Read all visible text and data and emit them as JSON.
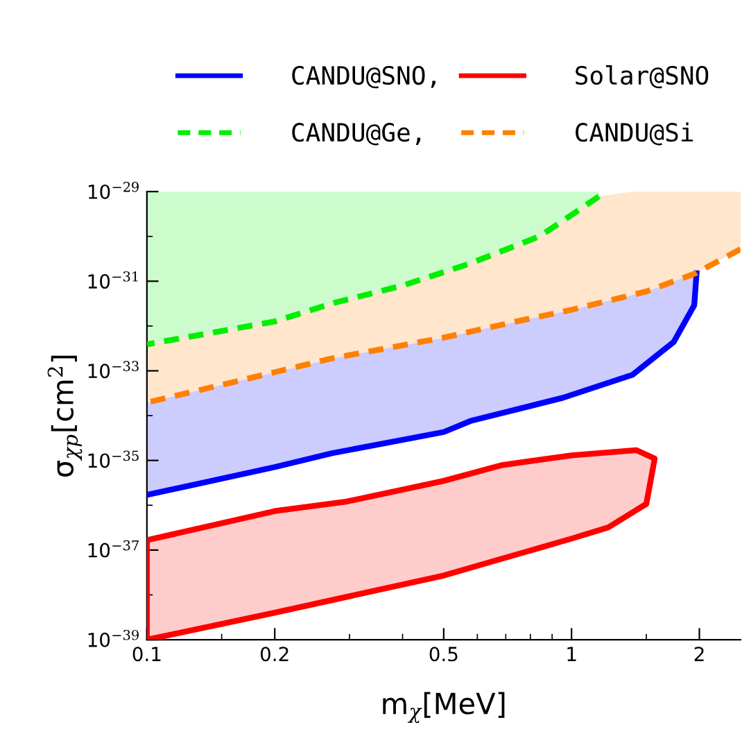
{
  "chart_data": {
    "type": "line",
    "xlabel": "m$_{χ}$[MeV]",
    "ylabel": "σ$_{χp}$[cm$^{2}$]",
    "log": "xy",
    "legend": "top",
    "grid": false,
    "xlim": [
      0.1,
      2.5
    ],
    "ylim": [
      1e-39,
      1e-29
    ],
    "xticks": [
      0.1,
      {
        "value": 0.15,
        "label": null
      },
      0.2,
      {
        "value": 0.3,
        "label": null
      },
      {
        "value": 0.4,
        "label": null
      },
      0.5,
      {
        "value": 0.6,
        "label": null
      },
      {
        "value": 0.7,
        "label": null
      },
      {
        "value": 0.8,
        "label": null
      },
      {
        "value": 0.9,
        "label": null
      },
      1,
      {
        "value": 1.5,
        "label": null
      },
      2
    ],
    "yticks": [
      {
        "value": 1e-39,
        "label": "10$^{−39}$"
      },
      {
        "value": 1e-38,
        "label": null
      },
      {
        "value": 1e-37,
        "label": "10$^{−37}$"
      },
      {
        "value": 1e-36,
        "label": null
      },
      {
        "value": 1e-35,
        "label": "10$^{−35}$"
      },
      {
        "value": 1e-34,
        "label": null
      },
      {
        "value": 1e-33,
        "label": "10$^{−33}$"
      },
      {
        "value": 1e-32,
        "label": null
      },
      {
        "value": 1e-31,
        "label": "10$^{−31}$"
      },
      {
        "value": 1e-30,
        "label": null
      },
      {
        "value": 1e-29,
        "label": "10$^{−29}$"
      }
    ],
    "series": [
      {
        "name": "CANDU@SNO,",
        "color": "#0000ff",
        "line_style": "solid",
        "x": [
          0.1,
          0.2,
          0.273,
          0.5,
          0.578,
          0.954,
          1.39,
          1.74,
          1.945,
          1.97
        ],
        "values": [
          1.7e-36,
          7.1e-36,
          1.45e-35,
          4.3e-35,
          7.6e-35,
          2.5e-34,
          8.1e-34,
          4.4e-33,
          2.9e-32,
          1.5e-31
        ]
      },
      {
        "name": "Solar@SNO",
        "type": "area",
        "color": "#ff0000",
        "line_style": "solid",
        "x": [
          0.1,
          0.2,
          0.294,
          0.5,
          0.687,
          1,
          1.42,
          1.57,
          1.5,
          1.22,
          1,
          0.5,
          0.2,
          0.1
        ],
        "values": [
          1.66e-37,
          7.4e-37,
          1.2e-36,
          3.5e-36,
          7.9e-36,
          1.3e-35,
          1.7e-35,
          1.1e-35,
          1.07e-36,
          3.2e-37,
          1.8e-37,
          2.7e-38,
          4e-39,
          1e-39
        ]
      },
      {
        "name": "CANDU@Ge,",
        "color": "#00ee00",
        "line_style": "dashed",
        "x": [
          0.1,
          0.2,
          0.273,
          0.4,
          0.578,
          0.84,
          1.0,
          1.16
        ],
        "values": [
          3.9e-33,
          1.26e-32,
          3.2e-32,
          8e-32,
          2.5e-31,
          1e-30,
          3e-30,
          7.8e-30
        ]
      },
      {
        "name": "CANDU@Si",
        "color": "#ff8000",
        "line_style": "dashed",
        "x": [
          0.1,
          0.2,
          0.273,
          0.5,
          0.741,
          1.0,
          1.5,
          1.96,
          2.5
        ],
        "values": [
          1.95e-34,
          9.3e-34,
          1.9e-33,
          5.5e-33,
          1.26e-32,
          2.3e-32,
          5.9e-32,
          1.5e-31,
          5.2e-31
        ]
      }
    ]
  }
}
